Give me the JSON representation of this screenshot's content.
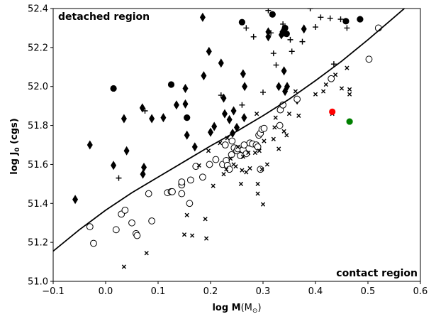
{
  "chart_data": {
    "type": "scatter",
    "xlabel": "log M",
    "xlabel_unit": "(M",
    "xlabel_unit_sub": "⊙",
    "xlabel_unit_close": ")",
    "ylabel_main": "log J",
    "ylabel_sub": "0",
    "ylabel_unit": " (cgs)",
    "xlim": [
      -0.1,
      0.6
    ],
    "ylim": [
      51.0,
      52.4
    ],
    "xticks": [
      -0.1,
      0.0,
      0.1,
      0.2,
      0.3,
      0.4,
      0.5,
      0.6
    ],
    "xtick_labels": [
      "−0.1",
      "0.0",
      "0.1",
      "0.2",
      "0.3",
      "0.4",
      "0.5",
      "0.6"
    ],
    "yticks": [
      51.0,
      51.2,
      51.4,
      51.6,
      51.8,
      52.0,
      52.2,
      52.4
    ],
    "ytick_labels": [
      "51.0",
      "51.2",
      "51.4",
      "51.6",
      "51.8",
      "52.0",
      "52.2",
      "52.4"
    ],
    "annotations": [
      {
        "text": "detached region",
        "position": "top-left"
      },
      {
        "text": "contact region",
        "position": "bottom-right"
      }
    ],
    "curve": {
      "name": "boundary",
      "x": [
        -0.1,
        -0.05,
        0.0,
        0.05,
        0.1,
        0.15,
        0.2,
        0.25,
        0.3,
        0.35,
        0.4,
        0.45,
        0.5,
        0.55,
        0.58
      ],
      "y": [
        51.155,
        51.265,
        51.365,
        51.455,
        51.535,
        51.615,
        51.695,
        51.77,
        51.85,
        51.935,
        52.03,
        52.13,
        52.24,
        52.355,
        52.425
      ]
    },
    "series": [
      {
        "name": "diamonds",
        "marker": "diamond",
        "points": [
          [
            -0.058,
            51.42
          ],
          [
            -0.03,
            51.7
          ],
          [
            0.015,
            51.595
          ],
          [
            0.035,
            51.835
          ],
          [
            0.04,
            51.67
          ],
          [
            0.07,
            51.89
          ],
          [
            0.073,
            51.585
          ],
          [
            0.071,
            51.55
          ],
          [
            0.088,
            51.835
          ],
          [
            0.11,
            51.84
          ],
          [
            0.135,
            51.905
          ],
          [
            0.152,
            51.99
          ],
          [
            0.152,
            51.91
          ],
          [
            0.155,
            51.75
          ],
          [
            0.17,
            51.69
          ],
          [
            0.185,
            52.355
          ],
          [
            0.187,
            52.055
          ],
          [
            0.197,
            52.18
          ],
          [
            0.2,
            51.765
          ],
          [
            0.207,
            51.795
          ],
          [
            0.22,
            52.12
          ],
          [
            0.225,
            51.94
          ],
          [
            0.227,
            51.86
          ],
          [
            0.236,
            51.83
          ],
          [
            0.242,
            51.76
          ],
          [
            0.244,
            51.875
          ],
          [
            0.25,
            51.79
          ],
          [
            0.262,
            52.065
          ],
          [
            0.265,
            52.0
          ],
          [
            0.264,
            51.84
          ],
          [
            0.31,
            52.28
          ],
          [
            0.31,
            52.255
          ],
          [
            0.33,
            52.0
          ],
          [
            0.335,
            52.265
          ],
          [
            0.337,
            52.28
          ],
          [
            0.34,
            52.08
          ],
          [
            0.346,
            52.0
          ],
          [
            0.342,
            51.975
          ],
          [
            0.365,
            51.93
          ],
          [
            0.378,
            52.295
          ]
        ]
      },
      {
        "name": "filled circles",
        "marker": "filled-circle",
        "points": [
          [
            0.015,
            51.99
          ],
          [
            0.125,
            52.01
          ],
          [
            0.155,
            51.84
          ],
          [
            0.26,
            52.33
          ],
          [
            0.318,
            52.37
          ],
          [
            0.342,
            52.3
          ],
          [
            0.345,
            52.27
          ],
          [
            0.458,
            52.335
          ],
          [
            0.485,
            52.345
          ]
        ]
      },
      {
        "name": "open circles",
        "marker": "open-circle",
        "points": [
          [
            -0.03,
            51.28
          ],
          [
            -0.023,
            51.195
          ],
          [
            0.02,
            51.265
          ],
          [
            0.03,
            51.345
          ],
          [
            0.037,
            51.365
          ],
          [
            0.05,
            51.3
          ],
          [
            0.058,
            51.245
          ],
          [
            0.06,
            51.235
          ],
          [
            0.082,
            51.45
          ],
          [
            0.088,
            51.31
          ],
          [
            0.118,
            51.455
          ],
          [
            0.125,
            51.46
          ],
          [
            0.127,
            51.46
          ],
          [
            0.145,
            51.495
          ],
          [
            0.145,
            51.51
          ],
          [
            0.145,
            51.45
          ],
          [
            0.16,
            51.4
          ],
          [
            0.162,
            51.52
          ],
          [
            0.172,
            51.59
          ],
          [
            0.185,
            51.535
          ],
          [
            0.198,
            51.6
          ],
          [
            0.21,
            51.625
          ],
          [
            0.223,
            51.6
          ],
          [
            0.228,
            51.7
          ],
          [
            0.23,
            51.62
          ],
          [
            0.232,
            51.595
          ],
          [
            0.236,
            51.575
          ],
          [
            0.24,
            51.65
          ],
          [
            0.241,
            51.72
          ],
          [
            0.245,
            51.685
          ],
          [
            0.25,
            51.67
          ],
          [
            0.252,
            51.68
          ],
          [
            0.257,
            51.645
          ],
          [
            0.262,
            51.675
          ],
          [
            0.264,
            51.7
          ],
          [
            0.268,
            51.655
          ],
          [
            0.275,
            51.71
          ],
          [
            0.28,
            51.705
          ],
          [
            0.287,
            51.7
          ],
          [
            0.29,
            51.69
          ],
          [
            0.292,
            51.75
          ],
          [
            0.295,
            51.575
          ],
          [
            0.295,
            51.76
          ],
          [
            0.298,
            51.78
          ],
          [
            0.302,
            51.785
          ],
          [
            0.332,
            51.8
          ],
          [
            0.333,
            51.88
          ],
          [
            0.338,
            51.905
          ],
          [
            0.365,
            51.935
          ],
          [
            0.43,
            52.04
          ],
          [
            0.502,
            52.14
          ],
          [
            0.52,
            52.3
          ]
        ]
      },
      {
        "name": "plus",
        "marker": "plus",
        "points": [
          [
            0.025,
            51.53
          ],
          [
            0.075,
            51.875
          ],
          [
            0.22,
            51.955
          ],
          [
            0.26,
            51.905
          ],
          [
            0.268,
            52.3
          ],
          [
            0.282,
            52.255
          ],
          [
            0.3,
            51.97
          ],
          [
            0.31,
            52.39
          ],
          [
            0.315,
            52.275
          ],
          [
            0.32,
            52.17
          ],
          [
            0.325,
            52.11
          ],
          [
            0.338,
            52.32
          ],
          [
            0.34,
            52.27
          ],
          [
            0.352,
            52.24
          ],
          [
            0.355,
            52.18
          ],
          [
            0.375,
            52.23
          ],
          [
            0.39,
            52.4
          ],
          [
            0.4,
            52.305
          ],
          [
            0.41,
            52.355
          ],
          [
            0.428,
            52.35
          ],
          [
            0.435,
            52.115
          ],
          [
            0.448,
            52.345
          ],
          [
            0.46,
            52.3
          ]
        ]
      },
      {
        "name": "crosses",
        "marker": "cross",
        "points": [
          [
            0.035,
            51.075
          ],
          [
            0.078,
            51.145
          ],
          [
            0.15,
            51.24
          ],
          [
            0.155,
            51.34
          ],
          [
            0.165,
            51.235
          ],
          [
            0.178,
            51.595
          ],
          [
            0.19,
            51.32
          ],
          [
            0.192,
            51.22
          ],
          [
            0.196,
            51.67
          ],
          [
            0.205,
            51.49
          ],
          [
            0.218,
            51.71
          ],
          [
            0.225,
            51.55
          ],
          [
            0.23,
            51.575
          ],
          [
            0.232,
            51.735
          ],
          [
            0.238,
            51.63
          ],
          [
            0.244,
            51.6
          ],
          [
            0.248,
            51.59
          ],
          [
            0.252,
            51.69
          ],
          [
            0.258,
            51.5
          ],
          [
            0.26,
            51.57
          ],
          [
            0.262,
            51.64
          ],
          [
            0.268,
            51.56
          ],
          [
            0.272,
            51.66
          ],
          [
            0.275,
            51.58
          ],
          [
            0.285,
            51.66
          ],
          [
            0.288,
            51.86
          ],
          [
            0.29,
            51.5
          ],
          [
            0.29,
            51.45
          ],
          [
            0.293,
            51.67
          ],
          [
            0.298,
            51.575
          ],
          [
            0.3,
            51.395
          ],
          [
            0.302,
            51.72
          ],
          [
            0.308,
            51.6
          ],
          [
            0.32,
            51.73
          ],
          [
            0.322,
            51.79
          ],
          [
            0.324,
            51.84
          ],
          [
            0.33,
            51.68
          ],
          [
            0.34,
            51.77
          ],
          [
            0.345,
            51.75
          ],
          [
            0.35,
            51.86
          ],
          [
            0.362,
            51.975
          ],
          [
            0.368,
            51.85
          ],
          [
            0.4,
            51.96
          ],
          [
            0.415,
            51.975
          ],
          [
            0.42,
            52.01
          ],
          [
            0.432,
            51.86
          ],
          [
            0.438,
            52.06
          ],
          [
            0.45,
            51.99
          ],
          [
            0.46,
            52.095
          ],
          [
            0.465,
            51.96
          ],
          [
            0.465,
            51.985
          ]
        ]
      },
      {
        "name": "red point",
        "marker": "filled-circle",
        "color": "#ff0000",
        "points": [
          [
            0.432,
            51.87
          ]
        ]
      },
      {
        "name": "green point",
        "marker": "filled-circle",
        "color": "#008000",
        "points": [
          [
            0.465,
            51.82
          ]
        ]
      }
    ]
  }
}
